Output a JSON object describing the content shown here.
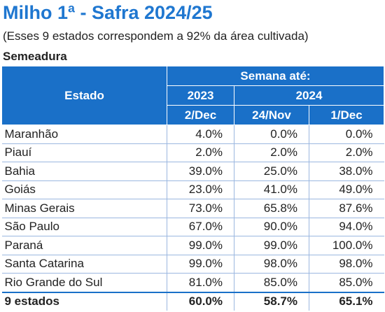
{
  "header": {
    "title": "Milho 1ª - Safra 2024/25",
    "subtitle": "(Esses 9 estados correspondem a 92% da área cultivada)",
    "section": "Semeadura"
  },
  "table": {
    "col_estado": "Estado",
    "semana": "Semana até:",
    "year_2023": "2023",
    "year_2024": "2024",
    "d1": "2/Dec",
    "d2": "24/Nov",
    "d3": "1/Dec",
    "rows": [
      [
        "Maranhão",
        "4.0%",
        "0.0%",
        "0.0%"
      ],
      [
        "Piauí",
        "2.0%",
        "2.0%",
        "2.0%"
      ],
      [
        "Bahia",
        "39.0%",
        "25.0%",
        "38.0%"
      ],
      [
        "Goiás",
        "23.0%",
        "41.0%",
        "49.0%"
      ],
      [
        "Minas Gerais",
        "73.0%",
        "65.8%",
        "87.6%"
      ],
      [
        "São Paulo",
        "67.0%",
        "90.0%",
        "94.0%"
      ],
      [
        "Paraná",
        "99.0%",
        "99.0%",
        "100.0%"
      ],
      [
        "Santa Catarina",
        "99.0%",
        "98.0%",
        "98.0%"
      ],
      [
        "Rio Grande do Sul",
        "81.0%",
        "85.0%",
        "85.0%"
      ]
    ],
    "total": [
      "9 estados",
      "60.0%",
      "58.7%",
      "65.1%"
    ]
  }
}
